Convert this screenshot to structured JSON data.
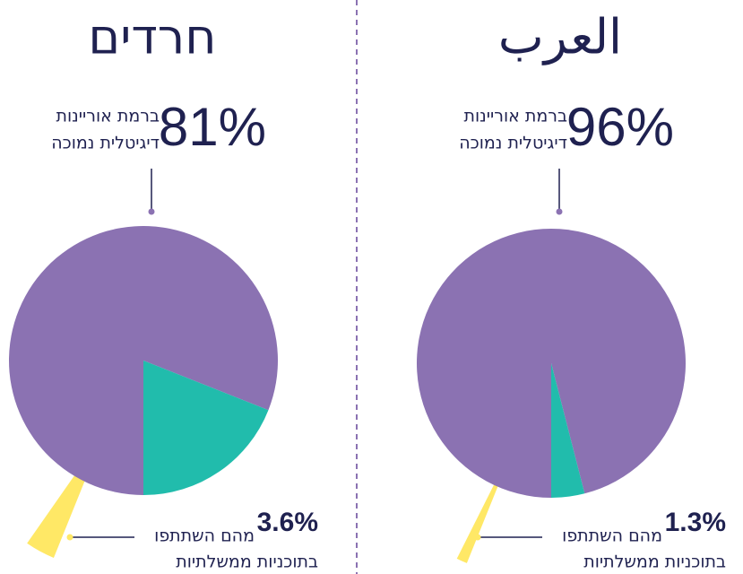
{
  "chart_data": [
    {
      "type": "pie",
      "title": "חרדים",
      "values": [
        81,
        19
      ],
      "value_labels": [
        "81%",
        null
      ],
      "colors": [
        "#8b72b2",
        "#21bcac"
      ],
      "label": [
        "ברמת אוריינות",
        "דיגיטלית נמוכה"
      ],
      "sub_value": 3.6,
      "sub_value_label": "3.6%",
      "sub_color": "#ffe866",
      "sub_label": [
        "מהם השתתפו",
        "בתוכניות ממשלתיות"
      ]
    },
    {
      "type": "pie",
      "title": "العرب",
      "values": [
        96,
        4
      ],
      "value_labels": [
        "96%",
        null
      ],
      "colors": [
        "#8b72b2",
        "#21bcac"
      ],
      "label": [
        "ברמת אוריינות",
        "דיגיטלית נמוכה"
      ],
      "sub_value": 1.3,
      "sub_value_label": "1.3%",
      "sub_color": "#ffe866",
      "sub_label": [
        "מהם השתתפו",
        "בתוכניות ממשלתיות"
      ]
    }
  ]
}
